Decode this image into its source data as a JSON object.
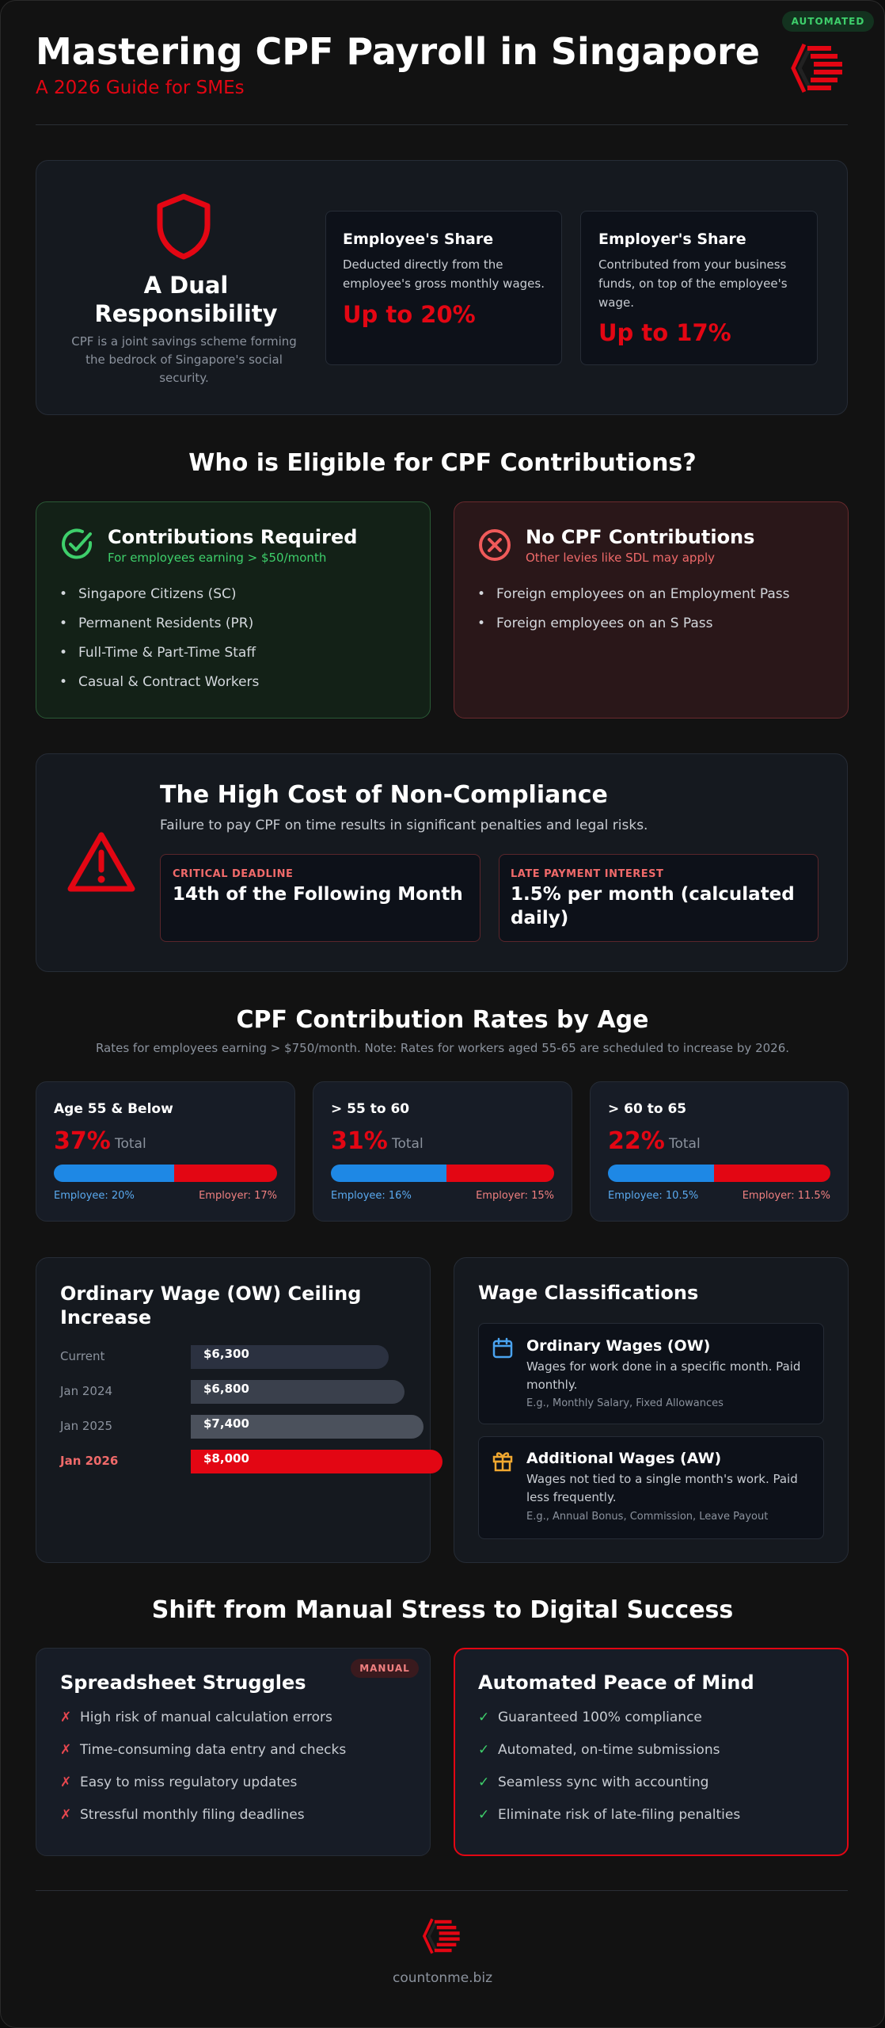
{
  "header": {
    "title": "Mastering CPF Payroll in Singapore",
    "subtitle": "A 2026 Guide for SMEs",
    "badge": "AUTOMATED"
  },
  "dual": {
    "title": "A Dual Responsibility",
    "description": "CPF is a joint savings scheme forming the bedrock of Singapore's social security.",
    "employee": {
      "title": "Employee's Share",
      "text": "Deducted directly from the employee's gross monthly wages.",
      "value": "Up to 20%"
    },
    "employer": {
      "title": "Employer's Share",
      "text": "Contributed from your business funds, on top of the employee's wage.",
      "value": "Up to 17%"
    }
  },
  "eligibility": {
    "heading": "Who is Eligible for CPF Contributions?",
    "required": {
      "title": "Contributions Required",
      "subtitle": "For employees earning > $50/month",
      "items": [
        "Singapore Citizens (SC)",
        "Permanent Residents (PR)",
        "Full-Time & Part-Time Staff",
        "Casual & Contract Workers"
      ]
    },
    "none": {
      "title": "No CPF Contributions",
      "subtitle": "Other levies like SDL may apply",
      "items": [
        "Foreign employees on an Employment Pass",
        "Foreign employees on an S Pass"
      ]
    }
  },
  "compliance": {
    "title": "The High Cost of Non-Compliance",
    "text": "Failure to pay CPF on time results in significant penalties and legal risks.",
    "deadline": {
      "label": "CRITICAL DEADLINE",
      "value": "14th of the Following Month"
    },
    "interest": {
      "label": "LATE PAYMENT INTEREST",
      "value": "1.5% per month (calculated daily)"
    }
  },
  "rates": {
    "heading": "CPF Contribution Rates by Age",
    "note": "Rates for employees earning > $750/month. Note: Rates for workers aged 55-65 are scheduled to increase by 2026.",
    "total_word": "Total",
    "groups": [
      {
        "age": "Age 55 & Below",
        "total": "37%",
        "employee_pct": 20,
        "employer_pct": 17,
        "employee_label": "Employee: 20%",
        "employer_label": "Employer: 17%"
      },
      {
        "age": "> 55 to 60",
        "total": "31%",
        "employee_pct": 16,
        "employer_pct": 15,
        "employee_label": "Employee: 16%",
        "employer_label": "Employer: 15%"
      },
      {
        "age": "> 60 to 65",
        "total": "22%",
        "employee_pct": 10.5,
        "employer_pct": 11.5,
        "employee_label": "Employee: 10.5%",
        "employer_label": "Employer: 11.5%"
      }
    ]
  },
  "chart_data": {
    "type": "bar",
    "title": "Ordinary Wage (OW) Ceiling Increase",
    "categories": [
      "Current",
      "Jan 2024",
      "Jan 2025",
      "Jan 2026"
    ],
    "values": [
      6300,
      6800,
      7400,
      8000
    ],
    "value_labels": [
      "$6,300",
      "$6,800",
      "$7,400",
      "$8,000"
    ],
    "colors": [
      "#2b3140",
      "#3a404c",
      "#4b515c",
      "#e30613"
    ]
  },
  "wages": {
    "title": "Wage Classifications",
    "ow": {
      "title": "Ordinary Wages (OW)",
      "text": "Wages for work done in a specific month. Paid monthly.",
      "example": "E.g., Monthly Salary, Fixed Allowances"
    },
    "aw": {
      "title": "Additional Wages (AW)",
      "text": "Wages not tied to a single month's work. Paid less frequently.",
      "example": "E.g., Annual Bonus, Commission, Leave Payout"
    }
  },
  "shift": {
    "heading": "Shift from Manual Stress to Digital Success",
    "manual": {
      "title": "Spreadsheet Struggles",
      "badge": "MANUAL",
      "items": [
        "High risk of manual calculation errors",
        "Time-consuming data entry and checks",
        "Easy to miss regulatory updates",
        "Stressful monthly filing deadlines"
      ]
    },
    "auto": {
      "title": "Automated Peace of Mind",
      "items": [
        "Guaranteed 100% compliance",
        "Automated, on-time submissions",
        "Seamless sync with accounting",
        "Eliminate risk of late-filing penalties"
      ]
    }
  },
  "footer": {
    "site": "countonme.biz"
  },
  "colors": {
    "brand_red": "#e30613",
    "blue": "#1e88e5",
    "green": "#3ecf6b"
  }
}
